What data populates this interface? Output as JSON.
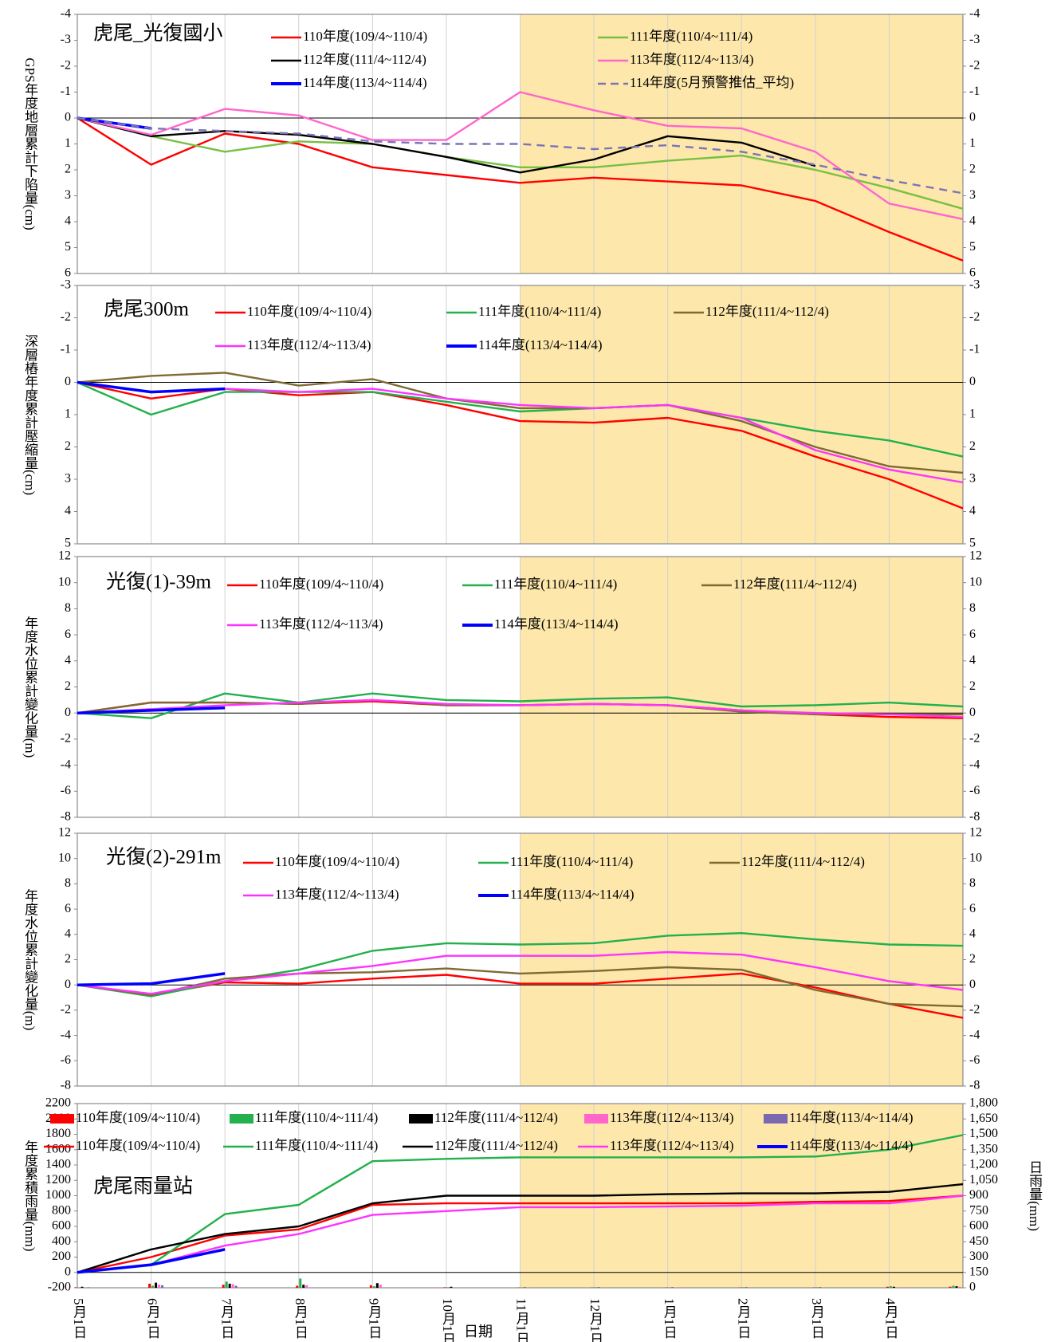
{
  "chart_data": [
    {
      "type": "line",
      "title": "虎尾_光復國小",
      "ylabel": "GPS年度地層累計下陷量(cm)",
      "ylim": [
        -4,
        6
      ],
      "y_inverted": true,
      "yticks": [
        -4,
        -3,
        -2,
        -1,
        0,
        1,
        2,
        3,
        4,
        5,
        6
      ],
      "negative_tick_color": "#ff0000",
      "series": [
        {
          "name": "110年度(109/4~110/4)",
          "color": "#ff0000",
          "values": [
            0,
            1.8,
            0.6,
            1.0,
            1.9,
            2.2,
            2.5,
            2.3,
            2.45,
            2.6,
            3.2,
            4.4,
            5.5
          ]
        },
        {
          "name": "111年度(110/4~111/4)",
          "color": "#77c043",
          "values": [
            0,
            0.7,
            1.3,
            0.9,
            1.0,
            1.5,
            1.9,
            1.9,
            1.65,
            1.45,
            2.0,
            2.7,
            3.5
          ]
        },
        {
          "name": "112年度(111/4~112/4)",
          "color": "#000000",
          "values": [
            0,
            0.7,
            0.5,
            0.65,
            1.0,
            1.5,
            2.1,
            1.6,
            0.7,
            0.95,
            1.85,
            null,
            null
          ]
        },
        {
          "name": "113年度(112/4~113/4)",
          "color": "#ff66cc",
          "values": [
            0,
            0.65,
            -0.35,
            -0.1,
            0.85,
            0.85,
            -1.0,
            -0.3,
            0.3,
            0.4,
            1.3,
            3.3,
            3.9
          ]
        },
        {
          "name": "114年度(113/4~114/4)",
          "color": "#0000ff",
          "values": [
            0,
            0.4,
            null,
            null,
            null,
            null,
            null,
            null,
            null,
            null,
            null,
            null,
            null
          ]
        },
        {
          "name": "114年度(5月預警推估_平均)",
          "color": "#7b74b8",
          "dashed": true,
          "values": [
            0,
            0.4,
            0.5,
            0.6,
            0.9,
            1.0,
            1.0,
            1.2,
            1.05,
            1.3,
            1.8,
            2.4,
            2.9
          ]
        }
      ]
    },
    {
      "type": "line",
      "title": "虎尾300m",
      "ylabel": "深層樁年度累計壓縮量(cm)",
      "ylim": [
        -3,
        5
      ],
      "y_inverted": true,
      "yticks": [
        -3,
        -2,
        -1,
        0,
        1,
        2,
        3,
        4,
        5
      ],
      "negative_tick_color": "#ff0000",
      "series": [
        {
          "name": "110年度(109/4~110/4)",
          "color": "#ff0000",
          "values": [
            0,
            0.5,
            0.2,
            0.4,
            0.3,
            0.7,
            1.2,
            1.25,
            1.1,
            1.5,
            2.3,
            3.0,
            3.9
          ]
        },
        {
          "name": "111年度(110/4~111/4)",
          "color": "#22b14c",
          "values": [
            0,
            1.0,
            0.3,
            0.3,
            0.3,
            0.6,
            0.9,
            0.8,
            0.7,
            1.1,
            1.5,
            1.8,
            2.3
          ]
        },
        {
          "name": "112年度(111/4~112/4)",
          "color": "#7f6a33",
          "values": [
            0,
            -0.2,
            -0.3,
            0.1,
            -0.1,
            0.5,
            0.8,
            0.8,
            0.7,
            1.2,
            2.0,
            2.6,
            2.8
          ]
        },
        {
          "name": "113年度(112/4~113/4)",
          "color": "#ff33ff",
          "values": [
            0,
            0.3,
            0.2,
            0.3,
            0.2,
            0.5,
            0.7,
            0.8,
            0.7,
            1.1,
            2.1,
            2.7,
            3.1
          ]
        },
        {
          "name": "114年度(113/4~114/4)",
          "color": "#0000ff",
          "values": [
            0,
            0.3,
            0.2,
            null,
            null,
            null,
            null,
            null,
            null,
            null,
            null,
            null,
            null
          ]
        }
      ]
    },
    {
      "type": "line",
      "title": "光復(1)-39m",
      "ylabel": "年度水位累計變化量(m)",
      "ylim": [
        -8,
        12
      ],
      "yticks": [
        -8,
        -6,
        -4,
        -2,
        0,
        2,
        4,
        6,
        8,
        10,
        12
      ],
      "negative_tick_color": "#ff0000",
      "series": [
        {
          "name": "110年度(109/4~110/4)",
          "color": "#ff0000",
          "values": [
            0,
            0.8,
            0.8,
            0.7,
            0.9,
            0.6,
            0.6,
            0.7,
            0.6,
            0.2,
            -0.1,
            -0.3,
            -0.4
          ]
        },
        {
          "name": "111年度(110/4~111/4)",
          "color": "#22b14c",
          "values": [
            0,
            -0.4,
            1.5,
            0.8,
            1.5,
            1.0,
            0.9,
            1.1,
            1.2,
            0.5,
            0.6,
            0.8,
            0.5
          ]
        },
        {
          "name": "112年度(111/4~112/4)",
          "color": "#7f6a33",
          "values": [
            0,
            0.8,
            0.8,
            0.7,
            1.0,
            0.6,
            0.6,
            0.7,
            0.6,
            0.1,
            -0.1,
            -0.1,
            -0.1
          ]
        },
        {
          "name": "113年度(112/4~113/4)",
          "color": "#ff33ff",
          "values": [
            0,
            0.3,
            0.6,
            0.8,
            1.0,
            0.7,
            0.6,
            0.7,
            0.6,
            0.2,
            0,
            -0.1,
            -0.3
          ]
        },
        {
          "name": "114年度(113/4~114/4)",
          "color": "#0000ff",
          "values": [
            0,
            0.2,
            0.4,
            null,
            null,
            null,
            null,
            null,
            null,
            null,
            null,
            null,
            null
          ]
        }
      ]
    },
    {
      "type": "line",
      "title": "光復(2)-291m",
      "ylabel": "年度水位累計變化量(m)",
      "ylim": [
        -8,
        12
      ],
      "yticks": [
        -8,
        -6,
        -4,
        -2,
        0,
        2,
        4,
        6,
        8,
        10,
        12
      ],
      "series": [
        {
          "name": "110年度(109/4~110/4)",
          "color": "#ff0000",
          "values": [
            0,
            -0.8,
            0.2,
            0.1,
            0.5,
            0.8,
            0.1,
            0.1,
            0.5,
            0.9,
            -0.2,
            -1.5,
            -2.6
          ]
        },
        {
          "name": "111年度(110/4~111/4)",
          "color": "#22b14c",
          "values": [
            0,
            -0.9,
            0.3,
            1.2,
            2.7,
            3.3,
            3.2,
            3.3,
            3.9,
            4.1,
            3.6,
            3.2,
            3.1
          ]
        },
        {
          "name": "112年度(111/4~112/4)",
          "color": "#7f6a33",
          "values": [
            0,
            -0.8,
            0.5,
            0.9,
            1.0,
            1.3,
            0.9,
            1.1,
            1.4,
            1.2,
            -0.4,
            -1.5,
            -1.7
          ]
        },
        {
          "name": "113年度(112/4~113/4)",
          "color": "#ff33ff",
          "values": [
            0,
            -0.7,
            0.3,
            0.9,
            1.5,
            2.3,
            2.3,
            2.3,
            2.6,
            2.4,
            1.4,
            0.3,
            -0.4
          ]
        },
        {
          "name": "114年度(113/4~114/4)",
          "color": "#0000ff",
          "values": [
            0,
            0.1,
            0.9,
            null,
            null,
            null,
            null,
            null,
            null,
            null,
            null,
            null,
            null
          ]
        }
      ]
    },
    {
      "type": "line",
      "title": "虎尾雨量站",
      "ylabel": "年度累積雨量(mm)",
      "y2label": "日雨量(mm)",
      "xlabel": "日期",
      "categories": [
        "5月1日",
        "6月1日",
        "7月1日",
        "8月1日",
        "9月1日",
        "10月1日",
        "11月1日",
        "12月1日",
        "1月1日",
        "2月1日",
        "3月1日",
        "4月1日",
        null
      ],
      "ylim": [
        -200,
        2200
      ],
      "yticks": [
        -200,
        0,
        200,
        400,
        600,
        800,
        1000,
        1200,
        1400,
        1600,
        1800,
        2000,
        2200
      ],
      "y2lim": [
        0,
        1800
      ],
      "y2ticks": [
        0,
        150,
        300,
        450,
        600,
        750,
        900,
        {
          "value": 1050,
          "label": "1,050"
        },
        {
          "value": 1200,
          "label": "1,200"
        },
        {
          "value": 1350,
          "label": "1,350"
        },
        {
          "value": 1500,
          "label": "1,500"
        },
        {
          "value": 1650,
          "label": "1,650"
        },
        {
          "value": 1800,
          "label": "1,800"
        }
      ],
      "series": [
        {
          "name": "110年度(109/4~110/4)",
          "type": "bar",
          "axis": "y2",
          "color": "#ff0000",
          "values": [
            5,
            40,
            30,
            20,
            25,
            5,
            3,
            3,
            3,
            3,
            3,
            10,
            10
          ]
        },
        {
          "name": "111年度(110/4~111/4)",
          "type": "bar",
          "axis": "y2",
          "color": "#22b14c",
          "values": [
            3,
            20,
            60,
            90,
            15,
            5,
            3,
            5,
            3,
            5,
            5,
            15,
            20
          ]
        },
        {
          "name": "112年度(111/4~112/4)",
          "type": "bar",
          "axis": "y2",
          "color": "#000000",
          "values": [
            10,
            50,
            40,
            30,
            45,
            10,
            3,
            3,
            3,
            3,
            3,
            10,
            15
          ]
        },
        {
          "name": "113年度(112/4~113/4)",
          "type": "bar",
          "axis": "y2",
          "color": "#ff66cc",
          "values": [
            5,
            30,
            35,
            25,
            30,
            5,
            3,
            3,
            3,
            5,
            3,
            5,
            10
          ]
        },
        {
          "name": "114年度(113/4~114/4)",
          "type": "bar",
          "axis": "y2",
          "color": "#7b68b0",
          "values": [
            5,
            25,
            20,
            null,
            null,
            null,
            null,
            null,
            null,
            null,
            null,
            null,
            null
          ]
        },
        {
          "name": "110年度(109/4~110/4)",
          "color": "#ff0000",
          "values": [
            0,
            200,
            480,
            560,
            880,
            900,
            900,
            900,
            900,
            900,
            920,
            930,
            1000
          ]
        },
        {
          "name": "111年度(110/4~111/4)",
          "color": "#22b14c",
          "values": [
            0,
            100,
            760,
            880,
            1450,
            1480,
            1500,
            1500,
            1500,
            1500,
            1510,
            1600,
            1790
          ]
        },
        {
          "name": "112年度(111/4~112/4)",
          "color": "#000000",
          "values": [
            0,
            300,
            500,
            600,
            900,
            1000,
            1000,
            1000,
            1020,
            1030,
            1030,
            1050,
            1150
          ]
        },
        {
          "name": "113年度(112/4~113/4)",
          "color": "#ff33ff",
          "values": [
            0,
            100,
            350,
            500,
            750,
            800,
            850,
            850,
            860,
            870,
            900,
            900,
            1000
          ]
        },
        {
          "name": "114年度(113/4~114/4)",
          "color": "#0000ff",
          "values": [
            0,
            100,
            300,
            null,
            null,
            null,
            null,
            null,
            null,
            null,
            null,
            null,
            null
          ]
        }
      ]
    }
  ]
}
